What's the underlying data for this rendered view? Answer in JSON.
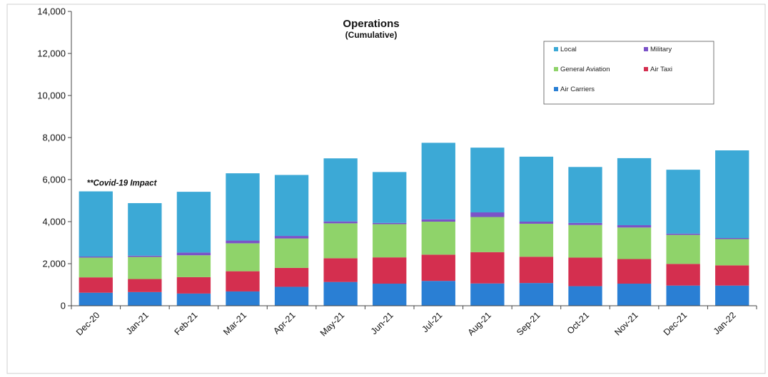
{
  "chart_data": {
    "type": "bar",
    "stacked": true,
    "title": "Operations",
    "subtitle": "(Cumulative)",
    "categories": [
      "Dec-20",
      "Jan-21",
      "Feb-21",
      "Mar-21",
      "Apr-21",
      "May-21",
      "Jun-21",
      "Jul-21",
      "Aug-21",
      "Sep-21",
      "Oct-21",
      "Nov-21",
      "Dec-21",
      "Jan-22"
    ],
    "ylim": [
      0,
      14000
    ],
    "yticks": [
      0,
      2000,
      4000,
      6000,
      8000,
      10000,
      12000,
      14000
    ],
    "ytick_labels": [
      "0",
      "2,000",
      "4,000",
      "6,000",
      "8,000",
      "10,000",
      "12,000",
      "14,000"
    ],
    "grid": false,
    "legend_position": "top-right",
    "series": [
      {
        "name": "Air Carriers",
        "color": "#2a7fd4",
        "values": [
          620,
          650,
          580,
          680,
          900,
          1130,
          1050,
          1180,
          1060,
          1080,
          930,
          1050,
          960,
          960
        ]
      },
      {
        "name": "Air Taxi",
        "color": "#d42f4f",
        "values": [
          730,
          620,
          780,
          960,
          900,
          1130,
          1250,
          1250,
          1490,
          1250,
          1360,
          1170,
          1030,
          960
        ]
      },
      {
        "name": "General Aviation",
        "color": "#8fd36a",
        "values": [
          940,
          1050,
          1040,
          1330,
          1400,
          1660,
          1580,
          1570,
          1670,
          1570,
          1550,
          1500,
          1380,
          1250
        ]
      },
      {
        "name": "Military",
        "color": "#7b52c8",
        "values": [
          50,
          60,
          130,
          130,
          120,
          90,
          60,
          110,
          220,
          100,
          100,
          110,
          60,
          50
        ]
      },
      {
        "name": "Local",
        "color": "#3ca9d6",
        "values": [
          3100,
          2500,
          2890,
          3200,
          2900,
          3000,
          2420,
          3640,
          3080,
          3090,
          2660,
          3190,
          3040,
          4170
        ]
      }
    ],
    "legend_order": [
      "Local",
      "Military",
      "General Aviation",
      "Air Taxi",
      "Air Carriers"
    ],
    "annotations": [
      {
        "text": "**Covid-19 Impact",
        "category": "Dec-20"
      }
    ]
  }
}
